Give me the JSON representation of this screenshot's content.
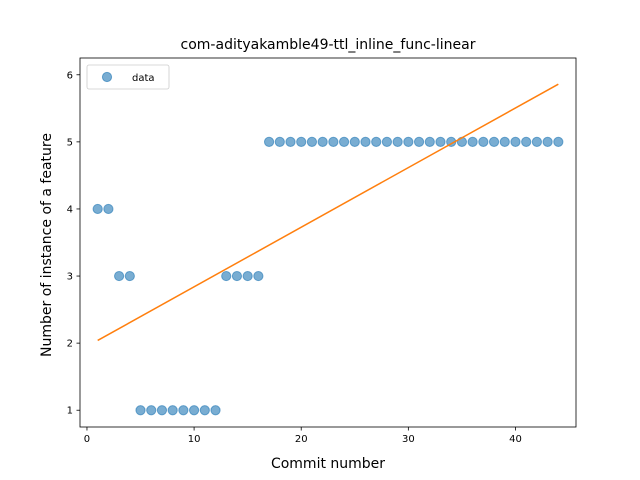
{
  "chart_data": {
    "type": "scatter",
    "title": "com-adityakamble49-ttl_inline_func-linear",
    "xlabel": "Commit number",
    "ylabel": "Number of instance of a feature",
    "xlim": [
      -0.65,
      45.65
    ],
    "ylim": [
      0.75,
      6.25
    ],
    "xticks": [
      0,
      10,
      20,
      30,
      40
    ],
    "yticks": [
      1,
      2,
      3,
      4,
      5,
      6
    ],
    "legend": {
      "placement": "upper-left",
      "entries": [
        "data"
      ]
    },
    "series": [
      {
        "name": "data",
        "kind": "scatter",
        "color": "#1f77b4",
        "x": [
          1,
          2,
          3,
          4,
          5,
          6,
          7,
          8,
          9,
          10,
          11,
          12,
          13,
          14,
          15,
          16,
          17,
          18,
          19,
          20,
          21,
          22,
          23,
          24,
          25,
          26,
          27,
          28,
          29,
          30,
          31,
          32,
          33,
          34,
          35,
          36,
          37,
          38,
          39,
          40,
          41,
          42,
          43,
          44
        ],
        "y": [
          4,
          4,
          3,
          3,
          1,
          1,
          1,
          1,
          1,
          1,
          1,
          1,
          3,
          3,
          3,
          3,
          5,
          5,
          5,
          5,
          5,
          5,
          5,
          5,
          5,
          5,
          5,
          5,
          5,
          5,
          5,
          5,
          5,
          5,
          5,
          5,
          5,
          5,
          5,
          5,
          5,
          5,
          5,
          5
        ]
      },
      {
        "kind": "line",
        "color": "#ff7f0e",
        "x": [
          1,
          44
        ],
        "y": [
          2.04,
          5.86
        ]
      }
    ]
  }
}
